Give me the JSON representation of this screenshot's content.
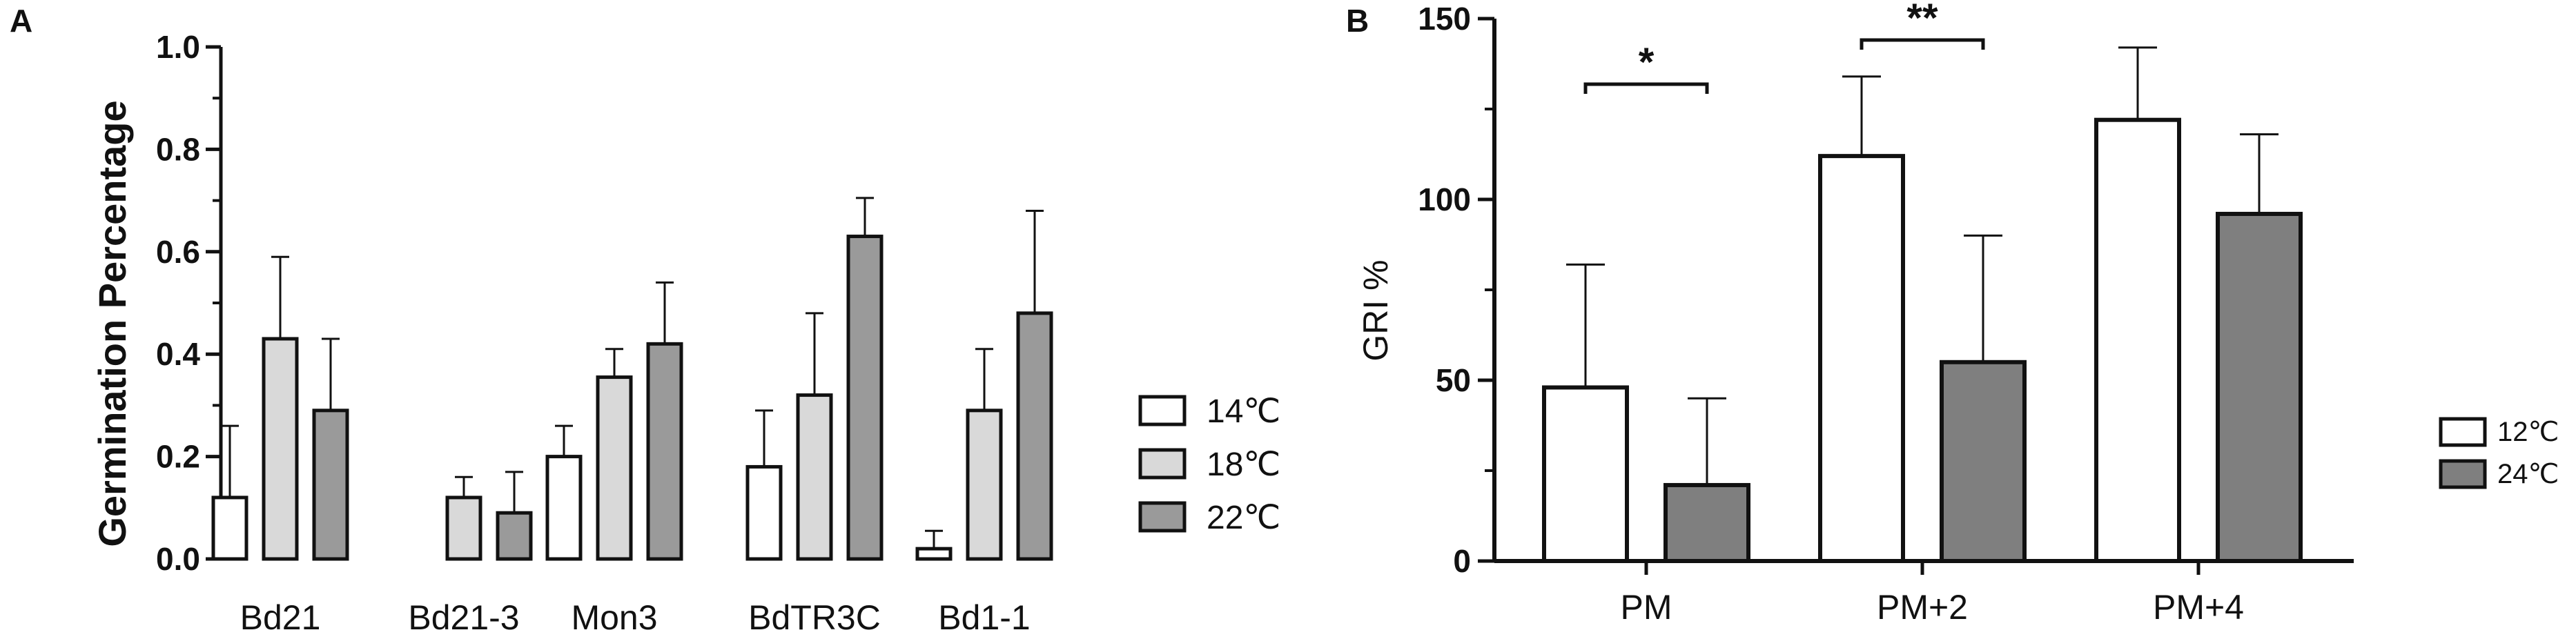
{
  "chart_data": [
    {
      "panel": "A",
      "type": "bar",
      "ylabel": "Germination Percentage",
      "xlabel": "",
      "ylim": [
        0,
        1.0
      ],
      "yticks": [
        "0.0",
        "0.2",
        "0.4",
        "0.6",
        "0.8",
        "1.0"
      ],
      "categories": [
        "Bd21",
        "Bd21-3",
        "Mon3",
        "BdTR3C",
        "Bd1-1"
      ],
      "series": [
        {
          "name": "14℃",
          "color": "#ffffff",
          "values": [
            0.12,
            null,
            0.2,
            0.18,
            0.02
          ],
          "errors": [
            0.14,
            null,
            0.06,
            0.11,
            0.035
          ]
        },
        {
          "name": "18℃",
          "color": "#d9d9d9",
          "values": [
            0.43,
            0.12,
            0.355,
            0.32,
            0.29
          ],
          "errors": [
            0.16,
            0.04,
            0.055,
            0.16,
            0.12
          ]
        },
        {
          "name": "22℃",
          "color": "#9a9a9a",
          "values": [
            0.29,
            0.09,
            0.42,
            0.63,
            0.48
          ],
          "errors": [
            0.14,
            0.08,
            0.12,
            0.075,
            0.2
          ]
        }
      ],
      "legend": "right",
      "grid": false
    },
    {
      "panel": "B",
      "type": "bar",
      "ylabel": "GRI %",
      "xlabel": "",
      "ylim": [
        0,
        150
      ],
      "yticks": [
        "0",
        "50",
        "100",
        "150"
      ],
      "categories": [
        "PM",
        "PM+2",
        "PM+4"
      ],
      "series": [
        {
          "name": "12℃",
          "color": "#ffffff",
          "values": [
            48,
            112,
            122
          ],
          "errors": [
            34,
            22,
            20
          ]
        },
        {
          "name": "24℃",
          "color": "#7f7f7f",
          "values": [
            21,
            55,
            96
          ],
          "errors": [
            24,
            35,
            22
          ]
        }
      ],
      "significance": [
        {
          "category": "PM",
          "label": "*"
        },
        {
          "category": "PM+2",
          "label": "**"
        }
      ],
      "legend": "right",
      "grid": false
    }
  ]
}
